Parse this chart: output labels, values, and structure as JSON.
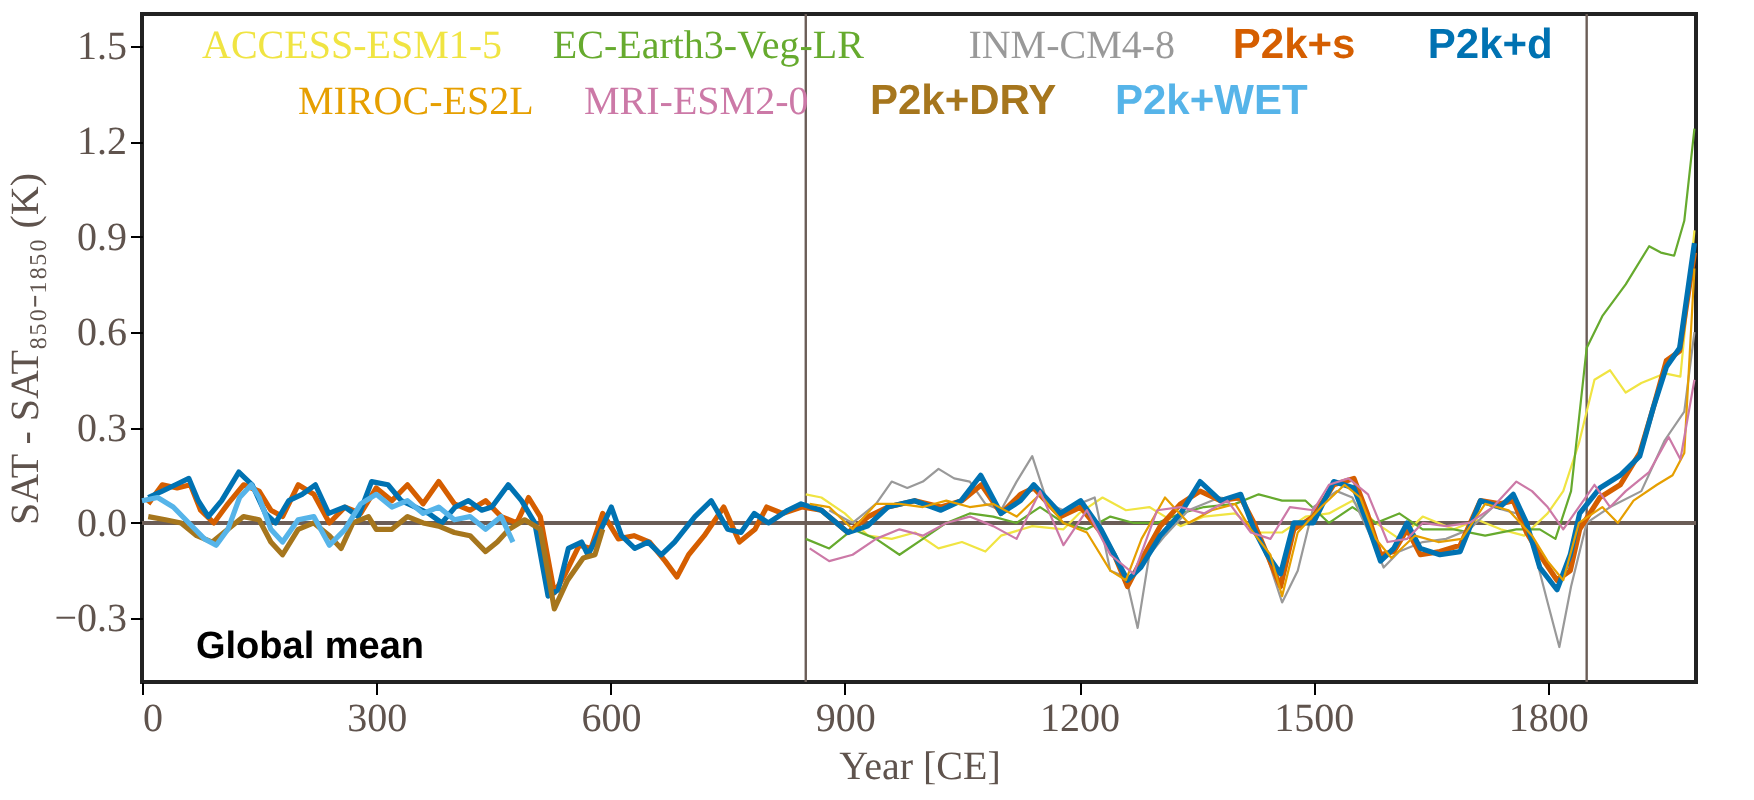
{
  "chart_data": {
    "type": "line",
    "xlabel": "Year [CE]",
    "ylabel": "SAT - SAT₈₅₀₋₁₈₅₀ (K)",
    "xlim": [
      0,
      1990
    ],
    "ylim": [
      -0.5,
      1.6
    ],
    "xticks": [
      0,
      300,
      600,
      900,
      1200,
      1500,
      1800
    ],
    "yticks": [
      -0.3,
      {
        "value": 0,
        "label": "0.0"
      },
      0.3,
      0.6,
      0.9,
      1.2,
      1.5
    ],
    "grid": false,
    "legend": "top",
    "line_style": "solid",
    "marker": "none",
    "annotations": [
      "Global mean"
    ],
    "ref_lines": [
      {
        "axis": "y",
        "value": 0,
        "color": "#6b5d57"
      },
      {
        "axis": "x",
        "value": 850,
        "color": "#6b5d57"
      },
      {
        "axis": "x",
        "value": 1850,
        "color": "#6b5d57"
      }
    ],
    "series": [
      {
        "name": "ACCESS-ESM1-5",
        "color": "#f0e442",
        "x": [
          850,
          870,
          900,
          930,
          960,
          990,
          1020,
          1050,
          1080,
          1100,
          1140,
          1180,
          1200,
          1230,
          1260,
          1290,
          1330,
          1360,
          1400,
          1430,
          1460,
          1490,
          1520,
          1550,
          1580,
          1610,
          1640,
          1680,
          1710,
          1740,
          1770,
          1800,
          1820,
          1840,
          1860,
          1880,
          1900,
          1920,
          1950,
          1970,
          1988
        ],
        "values": [
          0.09,
          0.08,
          0.03,
          -0.04,
          -0.05,
          -0.03,
          -0.08,
          -0.06,
          -0.09,
          -0.04,
          -0.01,
          -0.02,
          0.03,
          0.08,
          0.04,
          0.05,
          -0.01,
          0.02,
          0.03,
          -0.03,
          -0.03,
          0.02,
          0.03,
          0.07,
          0.0,
          -0.05,
          0.02,
          -0.02,
          0.01,
          -0.02,
          -0.04,
          0.03,
          0.1,
          0.25,
          0.45,
          0.48,
          0.41,
          0.44,
          0.47,
          0.46,
          0.92
        ]
      },
      {
        "name": "EC-Earth3-Veg-LR",
        "color": "#66aa2e",
        "x": [
          850,
          880,
          910,
          940,
          970,
          1000,
          1030,
          1060,
          1090,
          1120,
          1150,
          1180,
          1210,
          1240,
          1270,
          1300,
          1330,
          1360,
          1400,
          1430,
          1460,
          1490,
          1520,
          1550,
          1580,
          1610,
          1640,
          1680,
          1720,
          1760,
          1790,
          1810,
          1830,
          1850,
          1870,
          1900,
          1930,
          1945,
          1962,
          1975,
          1988
        ],
        "values": [
          -0.05,
          -0.08,
          -0.02,
          -0.05,
          -0.1,
          -0.05,
          0.0,
          0.03,
          0.02,
          0.0,
          0.05,
          0.0,
          -0.02,
          0.02,
          0.0,
          0.0,
          0.03,
          0.05,
          0.06,
          0.09,
          0.07,
          0.07,
          0.0,
          0.05,
          0.0,
          0.03,
          -0.02,
          -0.02,
          -0.04,
          -0.02,
          -0.02,
          -0.05,
          0.1,
          0.55,
          0.65,
          0.75,
          0.87,
          0.85,
          0.84,
          0.95,
          1.24
        ]
      },
      {
        "name": "INM-CM4-8",
        "color": "#999999",
        "x": [
          880,
          910,
          940,
          960,
          980,
          1000,
          1020,
          1040,
          1060,
          1080,
          1100,
          1120,
          1140,
          1160,
          1180,
          1200,
          1220,
          1240,
          1260,
          1275,
          1290,
          1310,
          1340,
          1380,
          1410,
          1440,
          1460,
          1480,
          1500,
          1530,
          1550,
          1575,
          1590,
          1610,
          1640,
          1670,
          1700,
          1730,
          1760,
          1780,
          1800,
          1815,
          1830,
          1850,
          1880,
          1920,
          1950,
          1975,
          1988
        ],
        "values": [
          0.04,
          0.0,
          0.06,
          0.13,
          0.11,
          0.13,
          0.17,
          0.14,
          0.13,
          0.06,
          0.04,
          0.13,
          0.21,
          0.06,
          0.04,
          0.06,
          0.08,
          -0.15,
          -0.17,
          -0.33,
          -0.1,
          -0.04,
          0.04,
          0.08,
          0.07,
          -0.1,
          -0.25,
          -0.15,
          0.05,
          0.1,
          0.08,
          -0.05,
          -0.14,
          -0.09,
          -0.06,
          -0.05,
          -0.02,
          0.05,
          0.03,
          -0.06,
          -0.25,
          -0.39,
          -0.2,
          0.0,
          0.05,
          0.1,
          0.26,
          0.35,
          0.6
        ]
      },
      {
        "name": "P2k+s",
        "color": "#d55e00",
        "x": [
          8,
          26,
          45,
          62,
          75,
          92,
          110,
          130,
          150,
          165,
          180,
          200,
          220,
          240,
          260,
          280,
          300,
          320,
          340,
          360,
          380,
          400,
          420,
          440,
          460,
          480,
          495,
          510,
          528,
          542,
          560,
          575,
          590,
          610,
          630,
          650,
          670,
          685,
          700,
          720,
          745,
          765,
          785,
          800,
          820,
          845,
          870,
          904,
          930,
          955,
          990,
          1023,
          1050,
          1075,
          1100,
          1125,
          1142,
          1176,
          1202,
          1228,
          1245,
          1262,
          1279,
          1304,
          1330,
          1355,
          1381,
          1407,
          1424,
          1441,
          1458,
          1475,
          1500,
          1526,
          1552,
          1569,
          1586,
          1603,
          1620,
          1637,
          1662,
          1688,
          1714,
          1739,
          1756,
          1773,
          1790,
          1812,
          1829,
          1841,
          1867,
          1893,
          1918,
          1935,
          1952,
          1969,
          1988
        ],
        "values": [
          0.06,
          0.12,
          0.11,
          0.12,
          0.04,
          0.0,
          0.06,
          0.12,
          0.1,
          0.04,
          0.02,
          0.12,
          0.09,
          0.0,
          0.05,
          0.03,
          0.11,
          0.07,
          0.12,
          0.06,
          0.13,
          0.06,
          0.04,
          0.07,
          0.02,
          0.0,
          0.08,
          0.02,
          -0.22,
          -0.16,
          -0.07,
          -0.08,
          0.03,
          -0.05,
          -0.04,
          -0.06,
          -0.12,
          -0.17,
          -0.1,
          -0.04,
          0.05,
          -0.06,
          -0.02,
          0.05,
          0.03,
          0.05,
          0.04,
          -0.03,
          0.02,
          0.05,
          0.07,
          0.05,
          0.07,
          0.12,
          0.03,
          0.09,
          0.11,
          0.02,
          0.05,
          -0.03,
          -0.1,
          -0.2,
          -0.12,
          -0.01,
          0.06,
          0.1,
          0.07,
          0.08,
          0.0,
          -0.1,
          -0.2,
          -0.02,
          0.02,
          0.12,
          0.14,
          0.03,
          -0.1,
          -0.09,
          -0.02,
          -0.1,
          -0.09,
          -0.07,
          0.07,
          0.06,
          0.07,
          -0.03,
          -0.1,
          -0.18,
          -0.15,
          -0.02,
          0.08,
          0.12,
          0.22,
          0.36,
          0.51,
          0.54,
          0.85
        ]
      },
      {
        "name": "P2k+d",
        "color": "#0072b2",
        "x": [
          8,
          26,
          43,
          60,
          72,
          85,
          102,
          124,
          141,
          158,
          171,
          188,
          205,
          222,
          239,
          260,
          277,
          294,
          315,
          332,
          350,
          367,
          384,
          401,
          418,
          435,
          448,
          469,
          486,
          503,
          520,
          533,
          546,
          563,
          571,
          584,
          601,
          614,
          631,
          648,
          665,
          682,
          708,
          729,
          750,
          767,
          784,
          802,
          827,
          844,
          870,
          904,
          929,
          955,
          989,
          1023,
          1049,
          1074,
          1100,
          1125,
          1142,
          1176,
          1202,
          1228,
          1245,
          1262,
          1279,
          1304,
          1330,
          1355,
          1381,
          1407,
          1424,
          1441,
          1458,
          1475,
          1500,
          1526,
          1552,
          1569,
          1586,
          1603,
          1620,
          1637,
          1662,
          1688,
          1714,
          1739,
          1756,
          1773,
          1790,
          1812,
          1829,
          1841,
          1867,
          1893,
          1918,
          1935,
          1952,
          1969,
          1988
        ],
        "values": [
          0.08,
          0.1,
          0.12,
          0.14,
          0.07,
          0.02,
          0.07,
          0.16,
          0.12,
          0.03,
          0.0,
          0.07,
          0.09,
          0.12,
          0.03,
          0.05,
          0.02,
          0.13,
          0.12,
          0.07,
          0.05,
          0.03,
          0.0,
          0.05,
          0.07,
          0.04,
          0.05,
          0.12,
          0.07,
          0.0,
          -0.23,
          -0.21,
          -0.08,
          -0.06,
          -0.1,
          -0.04,
          0.05,
          -0.04,
          -0.08,
          -0.06,
          -0.1,
          -0.06,
          0.02,
          0.07,
          -0.02,
          -0.03,
          0.03,
          0.0,
          0.04,
          0.06,
          0.04,
          -0.03,
          -0.01,
          0.05,
          0.07,
          0.04,
          0.07,
          0.15,
          0.03,
          0.07,
          0.12,
          0.03,
          0.07,
          -0.02,
          -0.1,
          -0.18,
          -0.14,
          -0.04,
          0.03,
          0.13,
          0.07,
          0.09,
          -0.02,
          -0.1,
          -0.16,
          0.0,
          0.0,
          0.13,
          0.11,
          0.0,
          -0.12,
          -0.08,
          0.0,
          -0.08,
          -0.1,
          -0.09,
          0.07,
          0.05,
          0.09,
          0.0,
          -0.14,
          -0.21,
          -0.1,
          0.03,
          0.11,
          0.15,
          0.21,
          0.36,
          0.49,
          0.55,
          0.88
        ]
      },
      {
        "name": "MIROC-ES2L",
        "color": "#e69f00",
        "x": [
          855,
          880,
          910,
          940,
          970,
          1000,
          1030,
          1060,
          1090,
          1120,
          1150,
          1180,
          1210,
          1240,
          1260,
          1280,
          1310,
          1340,
          1370,
          1400,
          1420,
          1445,
          1460,
          1480,
          1510,
          1540,
          1560,
          1580,
          1600,
          1630,
          1660,
          1690,
          1720,
          1750,
          1780,
          1800,
          1820,
          1840,
          1870,
          1890,
          1910,
          1940,
          1960,
          1975,
          1988
        ],
        "values": [
          0.06,
          0.05,
          -0.02,
          0.06,
          0.06,
          0.05,
          0.07,
          0.05,
          0.06,
          0.02,
          0.09,
          0.0,
          -0.03,
          -0.15,
          -0.18,
          -0.05,
          0.08,
          0.0,
          0.04,
          0.06,
          -0.02,
          -0.1,
          -0.23,
          -0.03,
          0.05,
          0.12,
          0.08,
          -0.05,
          -0.11,
          -0.04,
          -0.06,
          -0.05,
          0.06,
          0.04,
          -0.04,
          -0.12,
          -0.18,
          0.0,
          0.05,
          0.0,
          0.07,
          0.12,
          0.15,
          0.22,
          0.8
        ]
      },
      {
        "name": "MRI-ESM2-0",
        "color": "#cc79a7",
        "x": [
          855,
          880,
          910,
          940,
          970,
          1000,
          1030,
          1060,
          1090,
          1120,
          1150,
          1180,
          1210,
          1240,
          1270,
          1300,
          1330,
          1360,
          1390,
          1420,
          1445,
          1470,
          1500,
          1520,
          1545,
          1570,
          1595,
          1620,
          1640,
          1670,
          1700,
          1730,
          1760,
          1780,
          1800,
          1820,
          1840,
          1860,
          1880,
          1900,
          1930,
          1955,
          1970,
          1988
        ],
        "values": [
          -0.08,
          -0.12,
          -0.1,
          -0.05,
          -0.02,
          -0.04,
          0.0,
          0.02,
          -0.01,
          -0.05,
          0.1,
          -0.07,
          0.04,
          -0.1,
          -0.16,
          0.04,
          0.05,
          0.03,
          0.07,
          -0.03,
          -0.05,
          0.05,
          0.04,
          0.12,
          0.14,
          0.09,
          -0.06,
          -0.05,
          0.0,
          -0.01,
          0.0,
          0.05,
          0.13,
          0.1,
          0.05,
          -0.02,
          0.05,
          0.12,
          0.05,
          0.1,
          0.16,
          0.27,
          0.2,
          0.45
        ]
      },
      {
        "name": "P2k+DRY",
        "color": "#a6761d",
        "x": [
          8,
          30,
          50,
          70,
          90,
          110,
          130,
          150,
          165,
          180,
          200,
          220,
          240,
          255,
          270,
          290,
          300,
          320,
          340,
          360,
          380,
          400,
          420,
          440,
          455,
          470,
          490,
          510,
          528,
          545,
          565,
          580,
          590
        ],
        "values": [
          0.02,
          0.01,
          0.0,
          -0.04,
          -0.06,
          -0.02,
          0.02,
          0.01,
          -0.06,
          -0.1,
          -0.02,
          0.0,
          -0.04,
          -0.08,
          0.0,
          0.02,
          -0.02,
          -0.02,
          0.02,
          0.0,
          -0.01,
          -0.03,
          -0.04,
          -0.09,
          -0.06,
          -0.02,
          0.01,
          -0.02,
          -0.27,
          -0.18,
          -0.11,
          -0.1,
          -0.02
        ]
      },
      {
        "name": "P2k+WET",
        "color": "#56b4e9",
        "x": [
          0,
          20,
          40,
          60,
          80,
          95,
          110,
          125,
          140,
          150,
          165,
          180,
          200,
          220,
          240,
          260,
          280,
          300,
          320,
          340,
          360,
          380,
          400,
          420,
          440,
          460,
          475
        ],
        "values": [
          0.07,
          0.08,
          0.05,
          0.0,
          -0.05,
          -0.07,
          -0.02,
          0.08,
          0.12,
          0.08,
          -0.02,
          -0.06,
          0.01,
          0.02,
          -0.07,
          -0.02,
          0.06,
          0.09,
          0.05,
          0.07,
          0.03,
          0.05,
          0.01,
          0.02,
          -0.02,
          0.02,
          -0.06
        ]
      }
    ]
  }
}
